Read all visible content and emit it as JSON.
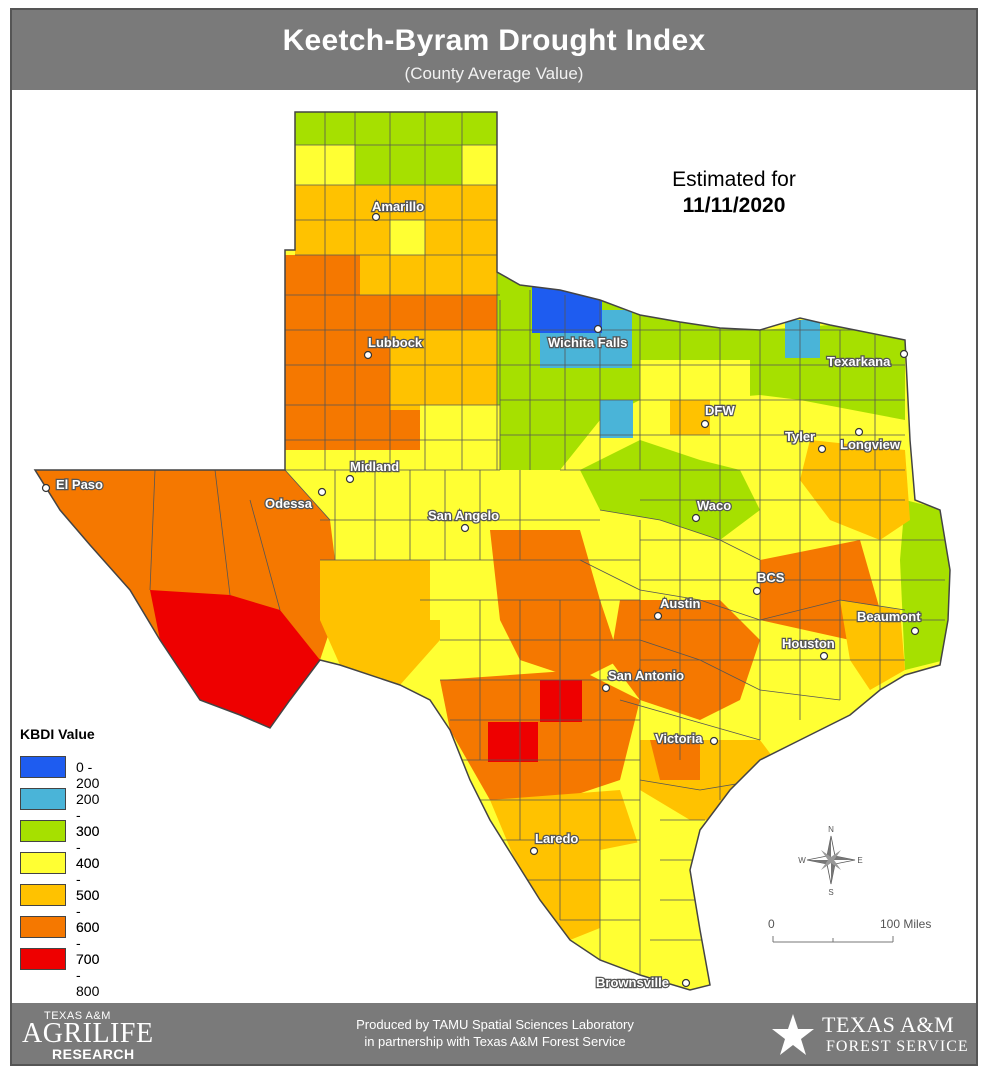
{
  "header": {
    "title": "Keetch-Byram Drought Index",
    "subtitle": "(County Average Value)"
  },
  "estimate": {
    "label": "Estimated for",
    "date": "11/11/2020"
  },
  "legend": {
    "title": "KBDI Value",
    "items": [
      {
        "label": "0 - 200",
        "color": "#1e5cf0"
      },
      {
        "label": "200 - 300",
        "color": "#4ab4d8"
      },
      {
        "label": "300 - 400",
        "color": "#a6e000"
      },
      {
        "label": "400 - 500",
        "color": "#ffff33"
      },
      {
        "label": "500 - 600",
        "color": "#ffc200"
      },
      {
        "label": "600 - 700",
        "color": "#f57800"
      },
      {
        "label": "700 - 800",
        "color": "#ee0000"
      }
    ]
  },
  "cities": [
    {
      "name": "Amarillo"
    },
    {
      "name": "Lubbock"
    },
    {
      "name": "Wichita Falls"
    },
    {
      "name": "Texarkana"
    },
    {
      "name": "DFW"
    },
    {
      "name": "Tyler"
    },
    {
      "name": "Longview"
    },
    {
      "name": "Midland"
    },
    {
      "name": "El Paso"
    },
    {
      "name": "Odessa"
    },
    {
      "name": "San Angelo"
    },
    {
      "name": "Waco"
    },
    {
      "name": "BCS"
    },
    {
      "name": "Austin"
    },
    {
      "name": "Beaumont"
    },
    {
      "name": "Houston"
    },
    {
      "name": "San Antonio"
    },
    {
      "name": "Victoria"
    },
    {
      "name": "Laredo"
    },
    {
      "name": "Brownsville"
    }
  ],
  "compass": {
    "n": "N",
    "s": "S",
    "e": "E",
    "w": "W"
  },
  "scale": {
    "start": "0",
    "end": "100 Miles"
  },
  "footer": {
    "credit_line1": "Produced by TAMU Spatial Sciences Laboratory",
    "credit_line2": "in partnership with Texas A&M Forest Service",
    "agrilife_top": "TEXAS A&M",
    "agrilife_mid": "AGRILIFE",
    "agrilife_bottom": "RESEARCH",
    "forest_top": "TEXAS A&M",
    "forest_bottom": "FOREST SERVICE"
  }
}
